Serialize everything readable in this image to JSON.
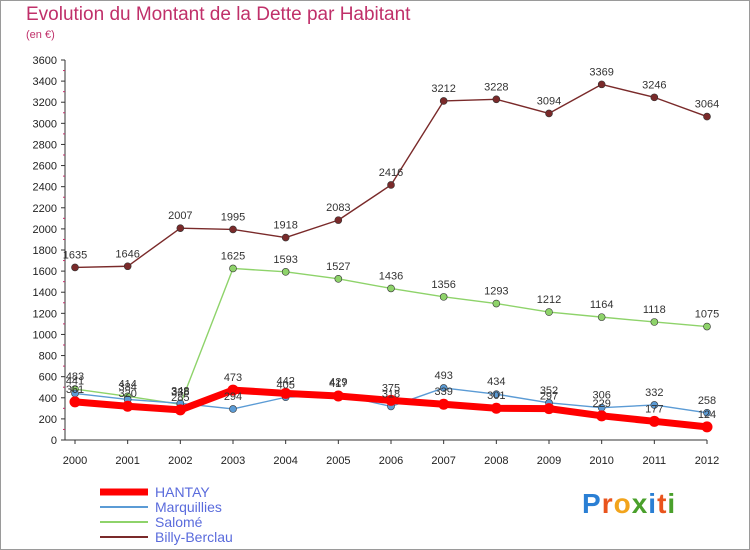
{
  "title": "Evolution du Montant de la Dette par Habitant",
  "subtitle": "(en €)",
  "logo": {
    "text": "Proxiti",
    "colors": [
      "#2a7fd4",
      "#e9541d",
      "#f2a41c",
      "#4aa02c",
      "#2a7fd4",
      "#e9541d",
      "#4aa02c"
    ]
  },
  "chart_data": {
    "type": "line",
    "x": [
      "2000",
      "2001",
      "2002",
      "2003",
      "2004",
      "2005",
      "2006",
      "2007",
      "2008",
      "2009",
      "2010",
      "2011",
      "2012"
    ],
    "ylim": [
      0,
      3600
    ],
    "yticks": [
      "0",
      "200",
      "400",
      "600",
      "800",
      "1000",
      "1200",
      "1400",
      "1600",
      "1800",
      "2000",
      "2200",
      "2400",
      "2600",
      "2800",
      "3000",
      "3200",
      "3400",
      "3600"
    ],
    "grid": false,
    "legend_position": "bottom-left",
    "series": [
      {
        "name": "HANTAY",
        "color": "#ff0000",
        "values": [
          361,
          320,
          285,
          473,
          442,
          417,
          375,
          339,
          301,
          297,
          229,
          177,
          124
        ],
        "labels": [
          "361",
          "320",
          "285",
          "473",
          "442",
          "417",
          "375",
          "339",
          "301",
          "297",
          "229",
          "177",
          "124"
        ]
      },
      {
        "name": "Marquillies",
        "color": "#5b9bd5",
        "values": [
          441,
          384,
          348,
          294,
          405,
          429,
          318,
          493,
          434,
          352,
          306,
          332,
          258
        ],
        "labels": [
          "441",
          "384",
          "348",
          "294",
          "405",
          "429",
          "318",
          "493",
          "434",
          "352",
          "306",
          "332",
          "258"
        ]
      },
      {
        "name": "Salomé",
        "color": "#8ed36a",
        "values": [
          483,
          414,
          338,
          1625,
          1593,
          1527,
          1436,
          1356,
          1293,
          1212,
          1164,
          1118,
          1075
        ],
        "labels": [
          "483",
          "414",
          "338",
          "1625",
          "1593",
          "1527",
          "1436",
          "1356",
          "1293",
          "1212",
          "1164",
          "1118",
          "1075"
        ]
      },
      {
        "name": "Billy-Berclau",
        "color": "#7a2a2a",
        "values": [
          1635,
          1646,
          2007,
          1995,
          1918,
          2083,
          2416,
          3212,
          3228,
          3094,
          3369,
          3246,
          3064
        ],
        "labels": [
          "1635",
          "1646",
          "2007",
          "1995",
          "1918",
          "2083",
          "2416",
          "3212",
          "3228",
          "3094",
          "3369",
          "3246",
          "3064"
        ]
      }
    ]
  }
}
